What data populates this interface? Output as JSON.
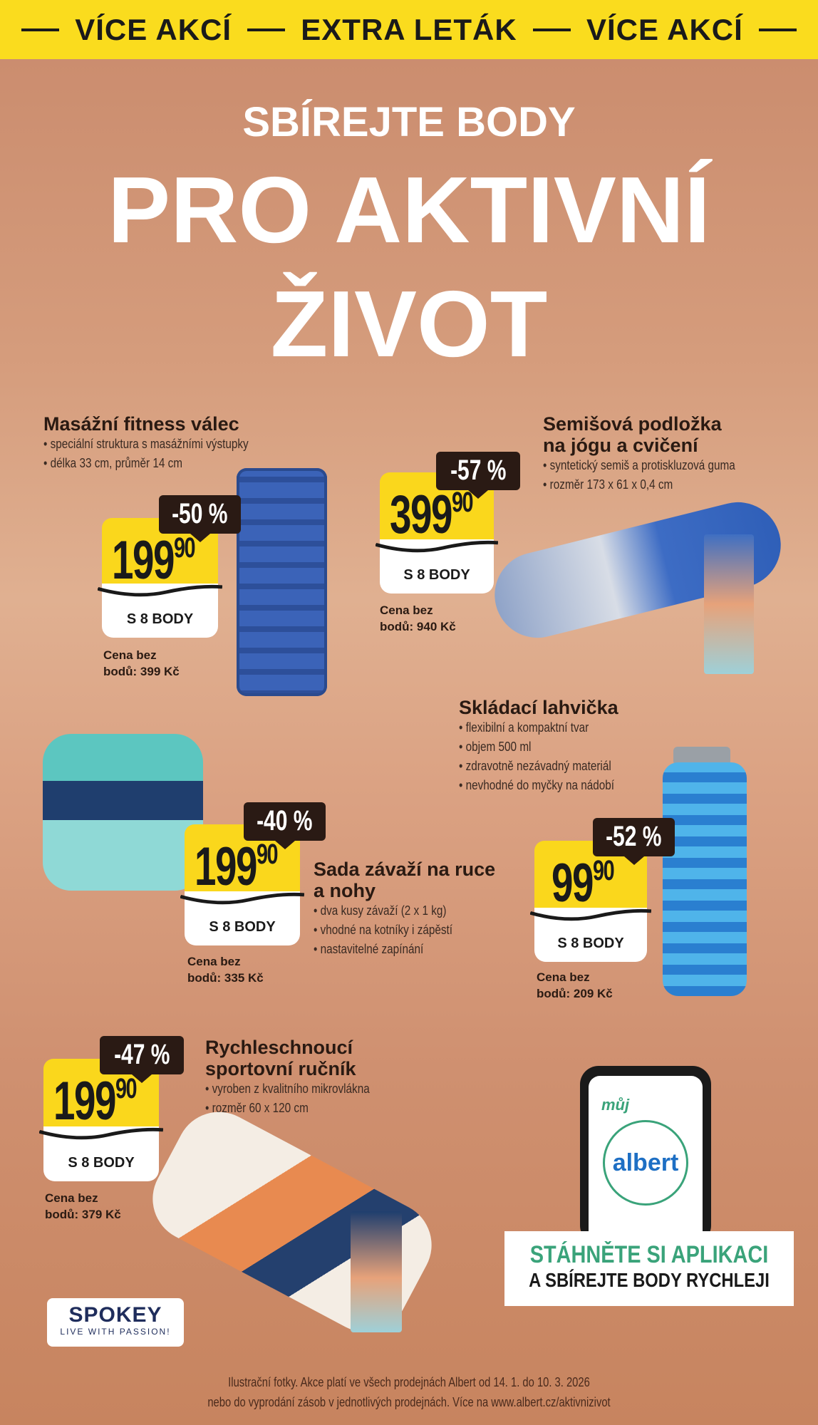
{
  "banner": {
    "left": "VÍCE AKCÍ",
    "center": "EXTRA LETÁK",
    "right": "VÍCE AKCÍ"
  },
  "hero": {
    "subtitle": "SBÍREJTE BODY",
    "title_line1": "PRO AKTIVNÍ",
    "title_line2": "ŽIVOT"
  },
  "products": [
    {
      "title": "Masážní fitness válec",
      "bullets": [
        "speciální struktura s masážními výstupky",
        "délka 33 cm, průměr 14 cm"
      ],
      "discount": "-50 %",
      "price_main": "199",
      "price_cents": "90",
      "points": "S 8 BODY",
      "cena_line1": "Cena bez",
      "cena_line2": "bodů: 399 Kč"
    },
    {
      "title_line1": "Semišová podložka",
      "title_line2": "na jógu a cvičení",
      "bullets": [
        "syntetický semiš a protiskluzová guma",
        "rozměr 173 x 61 x 0,4 cm"
      ],
      "discount": "-57 %",
      "price_main": "399",
      "price_cents": "90",
      "points": "S 8 BODY",
      "cena_line1": "Cena bez",
      "cena_line2": "bodů: 940 Kč"
    },
    {
      "title": "Skládací lahvička",
      "bullets": [
        "flexibilní a kompaktní tvar",
        "objem 500 ml",
        "zdravotně nezávadný materiál",
        "nevhodné do myčky na nádobí"
      ],
      "discount": "-52 %",
      "price_main": "99",
      "price_cents": "90",
      "points": "S 8 BODY",
      "cena_line1": "Cena bez",
      "cena_line2": "bodů: 209 Kč"
    },
    {
      "title_line1": "Sada závaží na ruce",
      "title_line2": "a nohy",
      "bullets": [
        "dva kusy závaží (2 x 1 kg)",
        "vhodné na kotníky i zápěstí",
        "nastavitelné zapínání"
      ],
      "discount": "-40 %",
      "price_main": "199",
      "price_cents": "90",
      "points": "S 8 BODY",
      "cena_line1": "Cena bez",
      "cena_line2": "bodů: 335 Kč"
    },
    {
      "title_line1": "Rychleschnoucí",
      "title_line2": "sportovní ručník",
      "bullets": [
        "vyroben z kvalitního mikrovlákna",
        "rozměr 60 x 120 cm"
      ],
      "discount": "-47 %",
      "price_main": "199",
      "price_cents": "90",
      "points": "S 8 BODY",
      "cena_line1": "Cena bez",
      "cena_line2": "bodů: 379 Kč"
    }
  ],
  "app": {
    "logo_small": "můj",
    "logo": "albert",
    "cta_line1": "STÁHNĚTE SI APLIKACI",
    "cta_line2": "A SBÍREJTE BODY RYCHLEJI"
  },
  "brand": {
    "logo": "SPOKEY",
    "tagline": "LIVE WITH PASSION!"
  },
  "footer": {
    "line1": "Ilustrační fotky. Akce platí ve všech prodejnách Albert od 14. 1. do 10. 3. 2026",
    "line2": "nebo do vyprodání zásob v jednotlivých prodejnách. Více na www.albert.cz/aktivnizivot"
  },
  "colors": {
    "yellow": "#fadc1e",
    "accent_green": "#3aa37a",
    "albert_blue": "#1e6fc4"
  }
}
